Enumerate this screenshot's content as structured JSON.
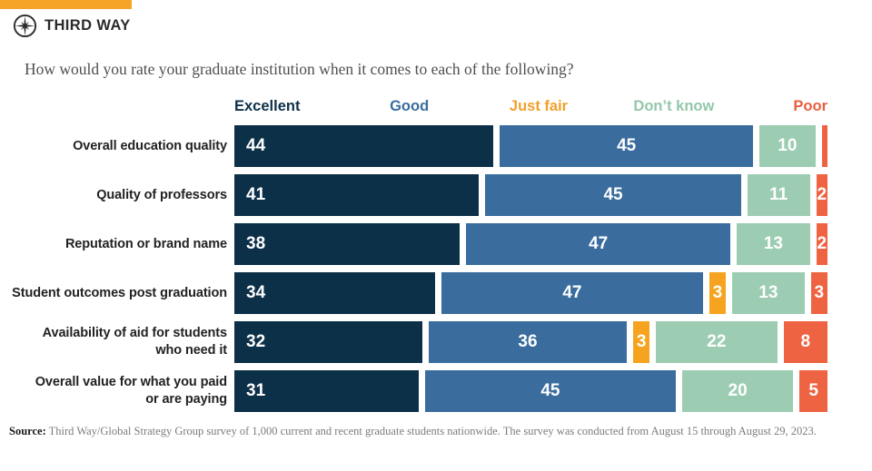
{
  "brand": {
    "name": "THIRD WAY",
    "accent_color": "#F5A428",
    "logo_color": "#2B2B2B"
  },
  "title": "How would you rate your graduate institution when it comes to each of the following?",
  "legend": [
    {
      "label": "Excellent",
      "color": "#0D3049"
    },
    {
      "label": "Good",
      "color": "#3A6D9E"
    },
    {
      "label": "Just fair",
      "color": "#F2A02C"
    },
    {
      "label": "Don’t know",
      "color": "#93C7AB"
    },
    {
      "label": "Poor",
      "color": "#E8603F"
    }
  ],
  "chart_data": {
    "type": "bar",
    "orientation": "horizontal-stacked",
    "title": "How would you rate your graduate institution when it comes to each of the following?",
    "xlabel": "",
    "ylabel": "",
    "xlim": [
      0,
      100
    ],
    "grid": false,
    "legend_position": "top",
    "value_labels": "inside, white, hidden when value < 2",
    "categories": [
      "Overall education quality",
      "Quality of professors",
      "Reputation or brand name",
      "Student outcomes post graduation",
      "Availability of aid for students\nwho need it",
      "Overall value for what you paid\nor are paying"
    ],
    "series": [
      {
        "name": "Excellent",
        "color": "#0D3049",
        "values": [
          44,
          41,
          38,
          34,
          32,
          31
        ]
      },
      {
        "name": "Good",
        "color": "#3A6D9E",
        "values": [
          45,
          45,
          47,
          47,
          36,
          45
        ]
      },
      {
        "name": "Just fair",
        "color": "#F6A41F",
        "values": [
          0,
          0,
          0,
          3,
          3,
          0
        ]
      },
      {
        "name": "Don’t know",
        "color": "#9CCDB2",
        "values": [
          10,
          11,
          13,
          13,
          22,
          20
        ]
      },
      {
        "name": "Poor",
        "color": "#EE6342",
        "values": [
          1,
          2,
          2,
          3,
          8,
          5
        ]
      }
    ]
  },
  "source": {
    "label": "Source:",
    "text": " Third Way/Global Strategy Group survey of 1,000 current and recent graduate students nationwide. The survey was conducted from August 15 through August 29, 2023."
  }
}
